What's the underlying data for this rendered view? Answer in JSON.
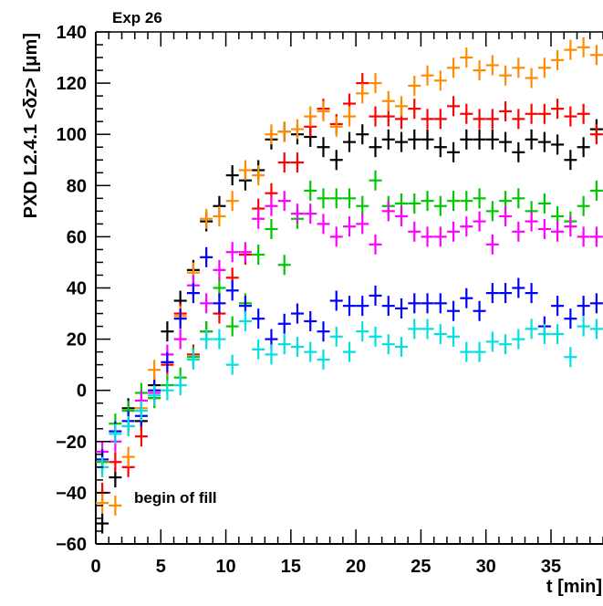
{
  "chart_data": {
    "type": "scatter",
    "title": "",
    "top_label": "Exp 26",
    "annotation": "begin of fill",
    "xlabel": "t [min]",
    "ylabel": "PXD L2.4.1 <δz> [μm]",
    "xlim": [
      0,
      39
    ],
    "ylim": [
      -60,
      140
    ],
    "xticks": [
      0,
      5,
      10,
      15,
      20,
      25,
      30,
      35
    ],
    "yticks": [
      -60,
      -40,
      -20,
      0,
      20,
      40,
      60,
      80,
      100,
      120,
      140
    ],
    "x_tick_labels": [
      "0",
      "5",
      "10",
      "15",
      "20",
      "25",
      "30",
      "35"
    ],
    "y_tick_labels": [
      "−60",
      "−40",
      "−20",
      "0",
      "20",
      "40",
      "60",
      "80",
      "100",
      "120",
      "140"
    ],
    "grid": false,
    "legend": "none",
    "marker": "cross",
    "series": [
      {
        "color": "#000000",
        "points": [
          [
            0.5,
            -52
          ],
          [
            1.5,
            -34
          ],
          [
            2.5,
            -7
          ],
          [
            3.5,
            -12
          ],
          [
            4.5,
            2
          ],
          [
            5.5,
            23
          ],
          [
            6.5,
            35
          ],
          [
            7.5,
            47
          ],
          [
            8.5,
            66
          ],
          [
            9.5,
            72
          ],
          [
            10.5,
            84
          ],
          [
            11.5,
            82
          ],
          [
            12.5,
            86
          ],
          [
            13.5,
            98
          ],
          [
            14.5,
            101
          ],
          [
            15.5,
            100
          ],
          [
            16.5,
            99
          ],
          [
            17.5,
            95
          ],
          [
            18.5,
            90
          ],
          [
            19.5,
            97
          ],
          [
            20.5,
            100
          ],
          [
            21.5,
            95
          ],
          [
            22.5,
            98
          ],
          [
            23.5,
            97
          ],
          [
            24.5,
            98
          ],
          [
            25.5,
            98
          ],
          [
            26.5,
            95
          ],
          [
            27.5,
            93
          ],
          [
            28.5,
            98
          ],
          [
            29.5,
            98
          ],
          [
            30.5,
            98
          ],
          [
            31.5,
            97
          ],
          [
            32.5,
            93
          ],
          [
            33.5,
            98
          ],
          [
            34.5,
            97
          ],
          [
            35.5,
            96
          ],
          [
            36.5,
            90
          ],
          [
            37.5,
            95
          ],
          [
            38.5,
            102
          ]
        ]
      },
      {
        "color": "#ff0000",
        "points": [
          [
            0.5,
            -40
          ],
          [
            1.5,
            -28
          ],
          [
            2.5,
            -30
          ],
          [
            3.5,
            -18
          ],
          [
            4.5,
            -3
          ],
          [
            5.5,
            10
          ],
          [
            6.5,
            30
          ],
          [
            7.5,
            14
          ],
          [
            8.5,
            23
          ],
          [
            9.5,
            30
          ],
          [
            10.5,
            44
          ],
          [
            11.5,
            53
          ],
          [
            12.5,
            71
          ],
          [
            13.5,
            77
          ],
          [
            14.5,
            89
          ],
          [
            15.5,
            89
          ],
          [
            16.5,
            103
          ],
          [
            17.5,
            110
          ],
          [
            18.5,
            104
          ],
          [
            19.5,
            112
          ],
          [
            20.5,
            120
          ],
          [
            21.5,
            107
          ],
          [
            22.5,
            107
          ],
          [
            23.5,
            106
          ],
          [
            24.5,
            110
          ],
          [
            25.5,
            106
          ],
          [
            26.5,
            106
          ],
          [
            27.5,
            111
          ],
          [
            28.5,
            108
          ],
          [
            29.5,
            106
          ],
          [
            30.5,
            106
          ],
          [
            31.5,
            109
          ],
          [
            32.5,
            106
          ],
          [
            33.5,
            108
          ],
          [
            34.5,
            108
          ],
          [
            35.5,
            110
          ],
          [
            36.5,
            107
          ],
          [
            37.5,
            108
          ],
          [
            38.5,
            100
          ]
        ]
      },
      {
        "color": "#ff8c00",
        "points": [
          [
            0.5,
            -44
          ],
          [
            1.5,
            -45
          ],
          [
            2.5,
            -26
          ],
          [
            3.5,
            -7
          ],
          [
            4.5,
            8
          ],
          [
            5.5,
            11
          ],
          [
            6.5,
            29
          ],
          [
            7.5,
            46
          ],
          [
            8.5,
            67
          ],
          [
            9.5,
            68
          ],
          [
            10.5,
            74
          ],
          [
            11.5,
            86
          ],
          [
            12.5,
            84
          ],
          [
            13.5,
            100
          ],
          [
            14.5,
            101
          ],
          [
            15.5,
            102
          ],
          [
            16.5,
            107
          ],
          [
            17.5,
            109
          ],
          [
            18.5,
            103
          ],
          [
            19.5,
            107
          ],
          [
            20.5,
            116
          ],
          [
            21.5,
            120
          ],
          [
            22.5,
            113
          ],
          [
            23.5,
            111
          ],
          [
            24.5,
            119
          ],
          [
            25.5,
            123
          ],
          [
            26.5,
            121
          ],
          [
            27.5,
            126
          ],
          [
            28.5,
            130
          ],
          [
            29.5,
            125
          ],
          [
            30.5,
            127
          ],
          [
            31.5,
            123
          ],
          [
            32.5,
            126
          ],
          [
            33.5,
            122
          ],
          [
            34.5,
            126
          ],
          [
            35.5,
            129
          ],
          [
            36.5,
            133
          ],
          [
            37.5,
            134
          ],
          [
            38.5,
            131
          ]
        ]
      },
      {
        "color": "#00c800",
        "points": [
          [
            0.5,
            -28
          ],
          [
            1.5,
            -13
          ],
          [
            2.5,
            -8
          ],
          [
            3.5,
            -1
          ],
          [
            4.5,
            -3
          ],
          [
            5.5,
            2
          ],
          [
            6.5,
            5
          ],
          [
            7.5,
            13
          ],
          [
            8.5,
            23
          ],
          [
            9.5,
            40
          ],
          [
            10.5,
            25
          ],
          [
            11.5,
            34
          ],
          [
            12.5,
            53
          ],
          [
            13.5,
            63
          ],
          [
            14.5,
            49
          ],
          [
            15.5,
            67
          ],
          [
            16.5,
            78
          ],
          [
            17.5,
            75
          ],
          [
            18.5,
            75
          ],
          [
            19.5,
            75
          ],
          [
            20.5,
            72
          ],
          [
            21.5,
            82
          ],
          [
            22.5,
            72
          ],
          [
            23.5,
            73
          ],
          [
            24.5,
            73
          ],
          [
            25.5,
            74
          ],
          [
            26.5,
            72
          ],
          [
            27.5,
            74
          ],
          [
            28.5,
            74
          ],
          [
            29.5,
            75
          ],
          [
            30.5,
            70
          ],
          [
            31.5,
            74
          ],
          [
            32.5,
            75
          ],
          [
            33.5,
            70
          ],
          [
            34.5,
            73
          ],
          [
            35.5,
            68
          ],
          [
            36.5,
            66
          ],
          [
            37.5,
            72
          ],
          [
            38.5,
            78
          ]
        ]
      },
      {
        "color": "#ff00ff",
        "points": [
          [
            0.5,
            -24
          ],
          [
            1.5,
            -20
          ],
          [
            2.5,
            -14
          ],
          [
            3.5,
            -4
          ],
          [
            4.5,
            -1
          ],
          [
            5.5,
            14
          ],
          [
            6.5,
            20
          ],
          [
            7.5,
            41
          ],
          [
            8.5,
            34
          ],
          [
            9.5,
            47
          ],
          [
            10.5,
            54
          ],
          [
            11.5,
            54
          ],
          [
            12.5,
            67
          ],
          [
            13.5,
            72
          ],
          [
            14.5,
            74
          ],
          [
            15.5,
            69
          ],
          [
            16.5,
            69
          ],
          [
            17.5,
            65
          ],
          [
            18.5,
            60
          ],
          [
            19.5,
            64
          ],
          [
            20.5,
            65
          ],
          [
            21.5,
            57
          ],
          [
            22.5,
            70
          ],
          [
            23.5,
            68
          ],
          [
            24.5,
            62
          ],
          [
            25.5,
            60
          ],
          [
            26.5,
            60
          ],
          [
            27.5,
            62
          ],
          [
            28.5,
            64
          ],
          [
            29.5,
            66
          ],
          [
            30.5,
            57
          ],
          [
            31.5,
            68
          ],
          [
            32.5,
            62
          ],
          [
            33.5,
            66
          ],
          [
            34.5,
            63
          ],
          [
            35.5,
            62
          ],
          [
            36.5,
            64
          ],
          [
            37.5,
            60
          ],
          [
            38.5,
            60
          ]
        ]
      },
      {
        "color": "#0000ff",
        "points": [
          [
            0.5,
            -27
          ],
          [
            1.5,
            -16
          ],
          [
            2.5,
            -12
          ],
          [
            3.5,
            -10
          ],
          [
            4.5,
            0
          ],
          [
            5.5,
            11
          ],
          [
            6.5,
            28
          ],
          [
            7.5,
            38
          ],
          [
            8.5,
            52
          ],
          [
            9.5,
            34
          ],
          [
            10.5,
            39
          ],
          [
            11.5,
            33
          ],
          [
            12.5,
            28
          ],
          [
            13.5,
            20
          ],
          [
            14.5,
            26
          ],
          [
            15.5,
            30
          ],
          [
            16.5,
            27
          ],
          [
            17.5,
            23
          ],
          [
            18.5,
            35
          ],
          [
            19.5,
            33
          ],
          [
            20.5,
            33
          ],
          [
            21.5,
            37
          ],
          [
            22.5,
            33
          ],
          [
            23.5,
            32
          ],
          [
            24.5,
            34
          ],
          [
            25.5,
            34
          ],
          [
            26.5,
            34
          ],
          [
            27.5,
            31
          ],
          [
            28.5,
            36
          ],
          [
            29.5,
            31
          ],
          [
            30.5,
            38
          ],
          [
            31.5,
            38
          ],
          [
            32.5,
            40
          ],
          [
            33.5,
            38
          ],
          [
            34.5,
            25
          ],
          [
            35.5,
            33
          ],
          [
            36.5,
            28
          ],
          [
            37.5,
            33
          ],
          [
            38.5,
            34
          ]
        ]
      },
      {
        "color": "#00e0e0",
        "points": [
          [
            0.5,
            -30
          ],
          [
            1.5,
            -17
          ],
          [
            2.5,
            -14
          ],
          [
            3.5,
            -8
          ],
          [
            4.5,
            -2
          ],
          [
            5.5,
            0
          ],
          [
            6.5,
            2
          ],
          [
            7.5,
            12
          ],
          [
            8.5,
            20
          ],
          [
            9.5,
            20
          ],
          [
            10.5,
            10
          ],
          [
            11.5,
            27
          ],
          [
            12.5,
            16
          ],
          [
            13.5,
            14
          ],
          [
            14.5,
            18
          ],
          [
            15.5,
            17
          ],
          [
            16.5,
            15
          ],
          [
            17.5,
            12
          ],
          [
            18.5,
            21
          ],
          [
            19.5,
            15
          ],
          [
            20.5,
            23
          ],
          [
            21.5,
            21
          ],
          [
            22.5,
            18
          ],
          [
            23.5,
            17
          ],
          [
            24.5,
            24
          ],
          [
            25.5,
            24
          ],
          [
            26.5,
            22
          ],
          [
            27.5,
            21
          ],
          [
            28.5,
            15
          ],
          [
            29.5,
            15
          ],
          [
            30.5,
            19
          ],
          [
            31.5,
            18
          ],
          [
            32.5,
            20
          ],
          [
            33.5,
            24
          ],
          [
            34.5,
            22
          ],
          [
            35.5,
            22
          ],
          [
            36.5,
            13
          ],
          [
            37.5,
            25
          ],
          [
            38.5,
            24
          ]
        ]
      }
    ]
  }
}
